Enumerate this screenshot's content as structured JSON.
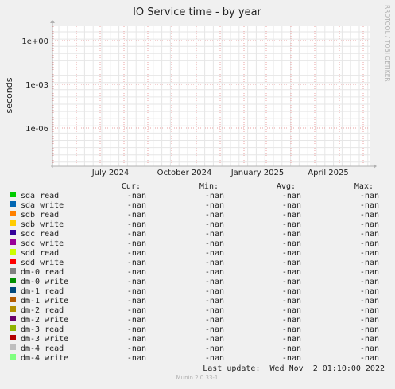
{
  "chart_data": {
    "type": "line",
    "title": "IO Service time - by year",
    "ylabel": "seconds",
    "xlabel": "",
    "y_scale": "log",
    "y_ticks": [
      "1e+00",
      "1e-03",
      "1e-06"
    ],
    "x_ticks": [
      "July 2024",
      "October 2024",
      "January 2025",
      "April 2025"
    ],
    "grid": true,
    "legend_headers": {
      "cur": "Cur:",
      "min": "Min:",
      "avg": "Avg:",
      "max": "Max:"
    },
    "series": [
      {
        "name": "sda read",
        "color": "#00cc00",
        "cur": "-nan",
        "min": "-nan",
        "avg": "-nan",
        "max": "-nan"
      },
      {
        "name": "sda write",
        "color": "#0066b3",
        "cur": "-nan",
        "min": "-nan",
        "avg": "-nan",
        "max": "-nan"
      },
      {
        "name": "sdb read",
        "color": "#ff8000",
        "cur": "-nan",
        "min": "-nan",
        "avg": "-nan",
        "max": "-nan"
      },
      {
        "name": "sdb write",
        "color": "#ffcc00",
        "cur": "-nan",
        "min": "-nan",
        "avg": "-nan",
        "max": "-nan"
      },
      {
        "name": "sdc read",
        "color": "#330099",
        "cur": "-nan",
        "min": "-nan",
        "avg": "-nan",
        "max": "-nan"
      },
      {
        "name": "sdc write",
        "color": "#990099",
        "cur": "-nan",
        "min": "-nan",
        "avg": "-nan",
        "max": "-nan"
      },
      {
        "name": "sdd read",
        "color": "#ccff00",
        "cur": "-nan",
        "min": "-nan",
        "avg": "-nan",
        "max": "-nan"
      },
      {
        "name": "sdd write",
        "color": "#ff0000",
        "cur": "-nan",
        "min": "-nan",
        "avg": "-nan",
        "max": "-nan"
      },
      {
        "name": "dm-0 read",
        "color": "#808080",
        "cur": "-nan",
        "min": "-nan",
        "avg": "-nan",
        "max": "-nan"
      },
      {
        "name": "dm-0 write",
        "color": "#008f00",
        "cur": "-nan",
        "min": "-nan",
        "avg": "-nan",
        "max": "-nan"
      },
      {
        "name": "dm-1 read",
        "color": "#00487d",
        "cur": "-nan",
        "min": "-nan",
        "avg": "-nan",
        "max": "-nan"
      },
      {
        "name": "dm-1 write",
        "color": "#b35a00",
        "cur": "-nan",
        "min": "-nan",
        "avg": "-nan",
        "max": "-nan"
      },
      {
        "name": "dm-2 read",
        "color": "#b38f00",
        "cur": "-nan",
        "min": "-nan",
        "avg": "-nan",
        "max": "-nan"
      },
      {
        "name": "dm-2 write",
        "color": "#6b006b",
        "cur": "-nan",
        "min": "-nan",
        "avg": "-nan",
        "max": "-nan"
      },
      {
        "name": "dm-3 read",
        "color": "#8fb300",
        "cur": "-nan",
        "min": "-nan",
        "avg": "-nan",
        "max": "-nan"
      },
      {
        "name": "dm-3 write",
        "color": "#b30000",
        "cur": "-nan",
        "min": "-nan",
        "avg": "-nan",
        "max": "-nan"
      },
      {
        "name": "dm-4 read",
        "color": "#bebebe",
        "cur": "-nan",
        "min": "-nan",
        "avg": "-nan",
        "max": "-nan"
      },
      {
        "name": "dm-4 write",
        "color": "#80ff80",
        "cur": "-nan",
        "min": "-nan",
        "avg": "-nan",
        "max": "-nan"
      }
    ]
  },
  "watermark": "RRDTOOL / TOBI OETIKER",
  "last_update": "Last update:  Wed Nov  2 01:10:00 2022",
  "footer": "Munin 2.0.33-1",
  "colors": {
    "background": "#f0f0f0",
    "plot_area": "#ffffff",
    "minor_grid": "#e6e6e6",
    "major_grid": "#e8a0a0",
    "axis": "#b0b0b0",
    "text": "#222222",
    "faint_text": "#b0b0b0"
  }
}
